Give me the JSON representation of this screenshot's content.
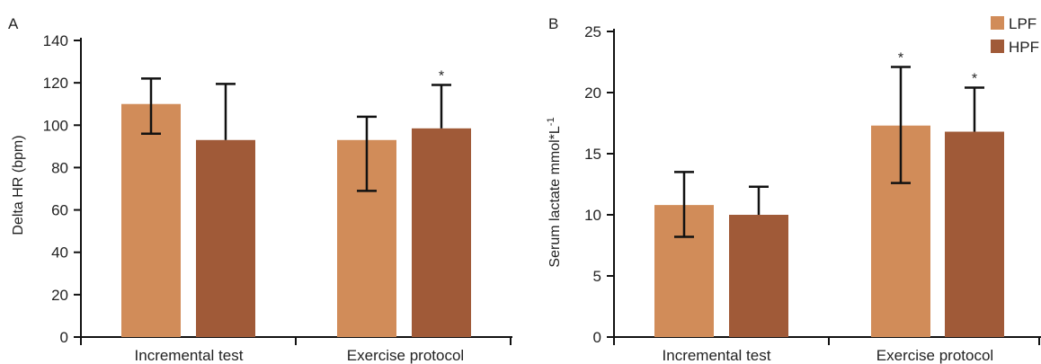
{
  "colors": {
    "lpf": "#d18c59",
    "hpf": "#a05a38",
    "axis": "#111111"
  },
  "chart_data": [
    {
      "type": "bar",
      "panel": "A",
      "ylabel": "Delta HR (bpm)",
      "xlabel": "",
      "ylim": [
        0,
        140
      ],
      "yticks": [
        "0",
        "20",
        "40",
        "60",
        "80",
        "100",
        "120",
        "140"
      ],
      "categories": [
        "Incremental test",
        "Exercise protocol"
      ],
      "series": [
        {
          "values": [
            110,
            93
          ],
          "error_low": [
            96,
            69
          ],
          "error_high": [
            122,
            104
          ],
          "significance": [
            "",
            ""
          ]
        },
        {
          "values": [
            93,
            98.5
          ],
          "error_low": [
            0,
            0
          ],
          "error_high": [
            119.5,
            119
          ],
          "significance": [
            "",
            "*"
          ]
        }
      ]
    },
    {
      "type": "bar",
      "panel": "B",
      "ylabel": "Serum lactate mmol*L",
      "ylabel_sup": "-1",
      "xlabel": "",
      "ylim": [
        0,
        25
      ],
      "yticks": [
        "0",
        "5",
        "10",
        "15",
        "20",
        "25"
      ],
      "categories": [
        "Incremental test",
        "Exercise protocol"
      ],
      "series": [
        {
          "name": "LPF",
          "values": [
            10.8,
            17.3
          ],
          "error_low": [
            8.2,
            12.6
          ],
          "error_high": [
            13.5,
            22.1
          ],
          "significance": [
            "",
            "*"
          ]
        },
        {
          "name": "HPF",
          "values": [
            10.0,
            16.8
          ],
          "error_low": [
            0,
            0
          ],
          "error_high": [
            12.3,
            20.4
          ],
          "significance": [
            "",
            "*"
          ]
        }
      ],
      "legend_position": "top-right"
    }
  ]
}
